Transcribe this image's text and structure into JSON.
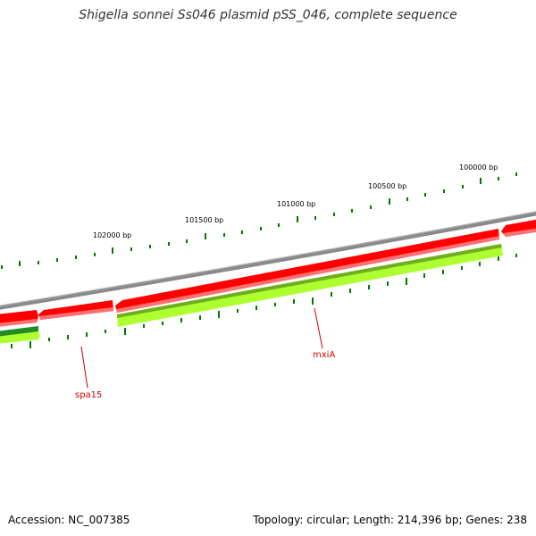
{
  "title": "Shigella sonnei Ss046 plasmid pSS_046, complete sequence",
  "footer": {
    "accession": "Accession: NC_007385",
    "info": "Topology: circular; Length: 214,396 bp; Genes: 238"
  },
  "colors": {
    "backbone": "#8a8a8a",
    "cds_forward": "#ff0000",
    "cds_forward_light": "#ff7070",
    "cds_reverse": "#adff2f",
    "cds_reverse_dark": "#228b22",
    "tick": "#007800",
    "gene_label": "#cc0000"
  },
  "ruler": [
    {
      "label": "102000 bp",
      "bp": 102000
    },
    {
      "label": "101500 bp",
      "bp": 101500
    },
    {
      "label": "101000 bp",
      "bp": 101000
    },
    {
      "label": "100500 bp",
      "bp": 100500
    },
    {
      "label": "100000 bp",
      "bp": 100000
    }
  ],
  "gene_labels": [
    {
      "name": "spa15"
    },
    {
      "name": "mxiA"
    }
  ]
}
